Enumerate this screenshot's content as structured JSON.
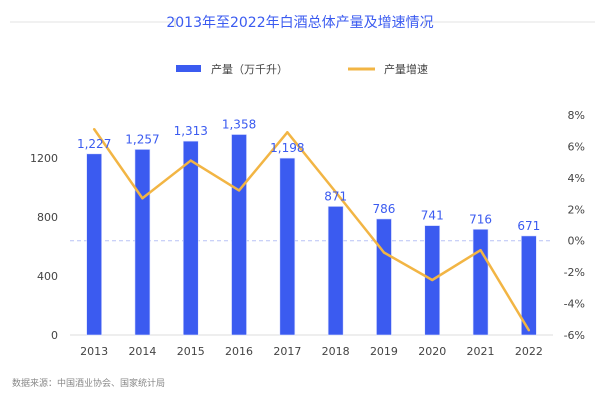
{
  "chart_data": {
    "type": "bar+line",
    "title": "2013年至2022年白酒总体产量及增速情况",
    "categories": [
      "2013",
      "2014",
      "2015",
      "2016",
      "2017",
      "2018",
      "2019",
      "2020",
      "2021",
      "2022"
    ],
    "series": [
      {
        "name": "产量（万千升）",
        "type": "bar",
        "axis": "left",
        "color": "#3b5bf0",
        "values": [
          1227,
          1257,
          1313,
          1358,
          1198,
          871,
          786,
          741,
          716,
          671
        ],
        "labels": [
          "1,227",
          "1,257",
          "1,313",
          "1,358",
          "1,198",
          "871",
          "786",
          "741",
          "716",
          "671"
        ]
      },
      {
        "name": "产量增速",
        "type": "line",
        "axis": "right",
        "color": "#f2b544",
        "unit": "%",
        "values": [
          7.1,
          2.7,
          5.1,
          3.2,
          6.9,
          3.1,
          -0.75,
          -2.5,
          -0.6,
          -5.7
        ]
      }
    ],
    "left_axis": {
      "ticks": [
        "0",
        "400",
        "800",
        "1200"
      ],
      "tick_values": [
        0,
        400,
        800,
        1200
      ],
      "ylim": [
        0,
        1490
      ]
    },
    "right_axis": {
      "ticks": [
        "8%",
        "6%",
        "4%",
        "2%",
        "0%",
        "-2%",
        "-4%",
        "-6%"
      ],
      "tick_values": [
        8,
        6,
        4,
        2,
        0,
        -2,
        -4,
        -6
      ],
      "ylim": [
        -6,
        8
      ]
    },
    "reference_line": {
      "axis": "right",
      "value": 0,
      "style": "dashed"
    },
    "legend_position": "top-center",
    "grid": false
  },
  "source": "数据来源：中国酒业协会、国家统计局"
}
